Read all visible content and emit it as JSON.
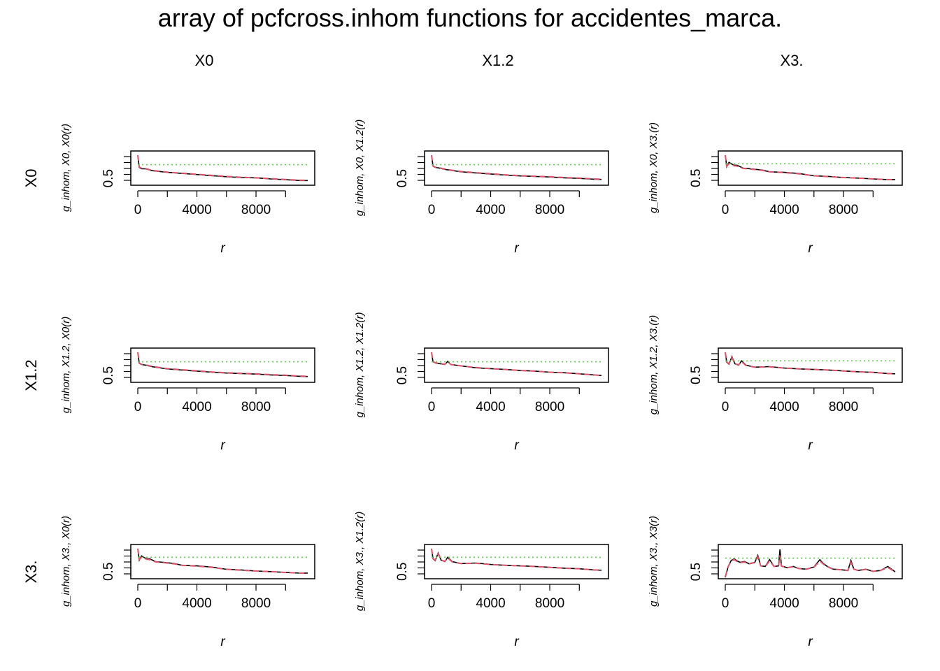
{
  "figure": {
    "title": "array of pcfcross.inhom functions for accidentes_marca.",
    "column_labels": [
      "X0",
      "X1.2",
      "X3."
    ],
    "row_labels": [
      "X0",
      "X1.2",
      "X3."
    ],
    "colors": {
      "observed": "#000000",
      "theoretical": "#61D04F",
      "border_corrected": "#DF536B"
    }
  },
  "chart_data": [
    {
      "type": "line",
      "panel": "X0 x X0",
      "xlabel": "r",
      "ylabel": "g_inhom, X0, X0(r)",
      "x_ticks": [
        0,
        4000,
        8000
      ],
      "y_ticks": [
        0.5
      ],
      "xlim": [
        0,
        11500
      ],
      "ylim": [
        0.3,
        1.4
      ],
      "theo": 1,
      "x": [
        0,
        100,
        250,
        500,
        1000,
        2000,
        3000,
        4000,
        5000,
        6000,
        7000,
        8000,
        9000,
        10000,
        11000,
        11500
      ],
      "series": [
        {
          "name": "obs",
          "values": [
            1.35,
            0.9,
            0.85,
            0.85,
            0.78,
            0.72,
            0.68,
            0.64,
            0.6,
            0.56,
            0.53,
            0.52,
            0.48,
            0.45,
            0.42,
            0.42
          ]
        },
        {
          "name": "border",
          "values": [
            1.35,
            0.92,
            0.87,
            0.86,
            0.79,
            0.73,
            0.69,
            0.65,
            0.61,
            0.57,
            0.54,
            0.52,
            0.49,
            0.46,
            0.43,
            0.43
          ]
        },
        {
          "name": "theo",
          "values": [
            1,
            1,
            1,
            1,
            1,
            1,
            1,
            1,
            1,
            1,
            1,
            1,
            1,
            1,
            1,
            1
          ]
        }
      ]
    },
    {
      "type": "line",
      "panel": "X0 x X1.2",
      "xlabel": "r",
      "ylabel": "g_inhom, X0, X1.2(r)",
      "x_ticks": [
        0,
        4000,
        8000
      ],
      "y_ticks": [
        0.5
      ],
      "xlim": [
        0,
        11500
      ],
      "ylim": [
        0.3,
        1.4
      ],
      "theo": 1,
      "x": [
        0,
        100,
        250,
        500,
        1000,
        2000,
        3000,
        4000,
        5000,
        6000,
        7000,
        8000,
        9000,
        10000,
        11000,
        11500
      ],
      "series": [
        {
          "name": "obs",
          "values": [
            1.35,
            0.95,
            0.9,
            0.88,
            0.82,
            0.74,
            0.7,
            0.66,
            0.62,
            0.59,
            0.57,
            0.55,
            0.52,
            0.5,
            0.47,
            0.46
          ]
        },
        {
          "name": "border",
          "values": [
            1.35,
            0.96,
            0.91,
            0.89,
            0.83,
            0.75,
            0.71,
            0.67,
            0.63,
            0.6,
            0.58,
            0.56,
            0.53,
            0.51,
            0.48,
            0.47
          ]
        },
        {
          "name": "theo",
          "values": [
            1,
            1,
            1,
            1,
            1,
            1,
            1,
            1,
            1,
            1,
            1,
            1,
            1,
            1,
            1,
            1
          ]
        }
      ]
    },
    {
      "type": "line",
      "panel": "X0 x X3.",
      "xlabel": "r",
      "ylabel": "g_inhom, X0, X3.(r)",
      "x_ticks": [
        0,
        4000,
        8000
      ],
      "y_ticks": [
        0.5
      ],
      "xlim": [
        0,
        11500
      ],
      "ylim": [
        0.3,
        1.35
      ],
      "theo": 1,
      "x": [
        0,
        100,
        250,
        400,
        600,
        800,
        1200,
        1800,
        2500,
        3000,
        4000,
        5000,
        6000,
        7000,
        8000,
        9000,
        10000,
        11000,
        11500
      ],
      "series": [
        {
          "name": "obs",
          "values": [
            1.3,
            0.9,
            1.05,
            1.0,
            0.95,
            0.95,
            0.85,
            0.82,
            0.78,
            0.72,
            0.7,
            0.66,
            0.58,
            0.56,
            0.52,
            0.5,
            0.47,
            0.45,
            0.45
          ]
        },
        {
          "name": "border",
          "values": [
            1.3,
            0.92,
            1.0,
            0.98,
            0.93,
            0.92,
            0.84,
            0.81,
            0.77,
            0.72,
            0.69,
            0.65,
            0.58,
            0.55,
            0.52,
            0.5,
            0.47,
            0.45,
            0.45
          ]
        },
        {
          "name": "theo",
          "values": [
            1,
            1,
            1,
            1,
            1,
            1,
            1,
            1,
            1,
            1,
            1,
            1,
            1,
            1,
            1,
            1,
            1,
            1,
            1
          ]
        }
      ]
    },
    {
      "type": "line",
      "panel": "X1.2 x X0",
      "xlabel": "r",
      "ylabel": "g_inhom, X1.2, X0(r)",
      "x_ticks": [
        0,
        4000,
        8000
      ],
      "y_ticks": [
        0.5
      ],
      "xlim": [
        0,
        11500
      ],
      "ylim": [
        0.3,
        1.4
      ],
      "theo": 1,
      "x": [
        0,
        100,
        250,
        500,
        1000,
        2000,
        3000,
        4000,
        5000,
        6000,
        7000,
        8000,
        9000,
        10000,
        11000,
        11500
      ],
      "series": [
        {
          "name": "obs",
          "values": [
            1.35,
            0.95,
            0.9,
            0.88,
            0.82,
            0.74,
            0.7,
            0.66,
            0.62,
            0.59,
            0.57,
            0.55,
            0.52,
            0.5,
            0.47,
            0.46
          ]
        },
        {
          "name": "border",
          "values": [
            1.35,
            0.96,
            0.91,
            0.89,
            0.83,
            0.75,
            0.71,
            0.67,
            0.63,
            0.6,
            0.58,
            0.56,
            0.53,
            0.51,
            0.48,
            0.47
          ]
        },
        {
          "name": "theo",
          "values": [
            1,
            1,
            1,
            1,
            1,
            1,
            1,
            1,
            1,
            1,
            1,
            1,
            1,
            1,
            1,
            1
          ]
        }
      ]
    },
    {
      "type": "line",
      "panel": "X1.2 x X1.2",
      "xlabel": "r",
      "ylabel": "g_inhom, X1.2, X1.2(r)",
      "x_ticks": [
        0,
        4000,
        8000
      ],
      "y_ticks": [
        0.5
      ],
      "xlim": [
        0,
        11500
      ],
      "ylim": [
        0.3,
        1.4
      ],
      "theo": 1,
      "x": [
        0,
        100,
        300,
        600,
        900,
        1100,
        1300,
        1600,
        2000,
        3000,
        4000,
        5000,
        6000,
        7000,
        8000,
        9000,
        10000,
        11000,
        11500
      ],
      "series": [
        {
          "name": "obs",
          "values": [
            1.35,
            1.0,
            0.95,
            0.93,
            0.9,
            1.02,
            0.9,
            0.88,
            0.85,
            0.78,
            0.75,
            0.72,
            0.68,
            0.66,
            0.62,
            0.6,
            0.56,
            0.52,
            0.5
          ]
        },
        {
          "name": "border",
          "values": [
            1.35,
            1.0,
            0.96,
            0.94,
            0.91,
            1.0,
            0.9,
            0.88,
            0.85,
            0.79,
            0.75,
            0.72,
            0.68,
            0.66,
            0.62,
            0.6,
            0.56,
            0.52,
            0.5
          ]
        },
        {
          "name": "theo",
          "values": [
            1,
            1,
            1,
            1,
            1,
            1,
            1,
            1,
            1,
            1,
            1,
            1,
            1,
            1,
            1,
            1,
            1,
            1,
            1
          ]
        }
      ]
    },
    {
      "type": "line",
      "panel": "X1.2 x X3.",
      "xlabel": "r",
      "ylabel": "g_inhom, X1.2, X3.(r)",
      "x_ticks": [
        0,
        4000,
        8000
      ],
      "y_ticks": [
        0.5
      ],
      "xlim": [
        0,
        11500
      ],
      "ylim": [
        0.3,
        1.35
      ],
      "theo": 1,
      "x": [
        0,
        100,
        250,
        450,
        650,
        900,
        1100,
        1400,
        2000,
        3000,
        4000,
        5000,
        6000,
        7000,
        8000,
        9000,
        10000,
        11000,
        11500
      ],
      "series": [
        {
          "name": "obs",
          "values": [
            1.3,
            0.95,
            0.88,
            1.15,
            0.9,
            0.85,
            1.0,
            0.85,
            0.78,
            0.8,
            0.75,
            0.72,
            0.7,
            0.68,
            0.65,
            0.62,
            0.6,
            0.56,
            0.55
          ]
        },
        {
          "name": "border",
          "values": [
            1.3,
            0.96,
            0.9,
            1.12,
            0.9,
            0.86,
            0.98,
            0.84,
            0.78,
            0.79,
            0.75,
            0.72,
            0.7,
            0.68,
            0.65,
            0.62,
            0.6,
            0.56,
            0.55
          ]
        },
        {
          "name": "theo",
          "values": [
            1,
            1,
            1,
            1,
            1,
            1,
            1,
            1,
            1,
            1,
            1,
            1,
            1,
            1,
            1,
            1,
            1,
            1,
            1
          ]
        }
      ]
    },
    {
      "type": "line",
      "panel": "X3. x X0",
      "xlabel": "r",
      "ylabel": "g_inhom, X3., X0(r)",
      "x_ticks": [
        0,
        4000,
        8000
      ],
      "y_ticks": [
        0.5
      ],
      "xlim": [
        0,
        11500
      ],
      "ylim": [
        0.3,
        1.35
      ],
      "theo": 1,
      "x": [
        0,
        100,
        250,
        400,
        600,
        800,
        1200,
        1800,
        2500,
        3000,
        4000,
        5000,
        6000,
        7000,
        8000,
        9000,
        10000,
        11000,
        11500
      ],
      "series": [
        {
          "name": "obs",
          "values": [
            1.3,
            0.9,
            1.05,
            1.0,
            0.95,
            0.95,
            0.85,
            0.82,
            0.78,
            0.72,
            0.7,
            0.66,
            0.58,
            0.56,
            0.52,
            0.5,
            0.47,
            0.45,
            0.45
          ]
        },
        {
          "name": "border",
          "values": [
            1.3,
            0.92,
            1.0,
            0.98,
            0.93,
            0.92,
            0.84,
            0.81,
            0.77,
            0.72,
            0.69,
            0.65,
            0.58,
            0.55,
            0.52,
            0.5,
            0.47,
            0.45,
            0.45
          ]
        },
        {
          "name": "theo",
          "values": [
            1,
            1,
            1,
            1,
            1,
            1,
            1,
            1,
            1,
            1,
            1,
            1,
            1,
            1,
            1,
            1,
            1,
            1,
            1
          ]
        }
      ]
    },
    {
      "type": "line",
      "panel": "X3. x X1.2",
      "xlabel": "r",
      "ylabel": "g_inhom, X3., X1.2(r)",
      "x_ticks": [
        0,
        4000,
        8000
      ],
      "y_ticks": [
        0.5
      ],
      "xlim": [
        0,
        11500
      ],
      "ylim": [
        0.3,
        1.35
      ],
      "theo": 1,
      "x": [
        0,
        100,
        250,
        450,
        650,
        900,
        1100,
        1400,
        2000,
        3000,
        4000,
        5000,
        6000,
        7000,
        8000,
        9000,
        10000,
        11000,
        11500
      ],
      "series": [
        {
          "name": "obs",
          "values": [
            1.3,
            0.95,
            0.88,
            1.15,
            0.9,
            0.85,
            1.0,
            0.85,
            0.78,
            0.8,
            0.75,
            0.72,
            0.7,
            0.68,
            0.65,
            0.62,
            0.6,
            0.56,
            0.55
          ]
        },
        {
          "name": "border",
          "values": [
            1.3,
            0.96,
            0.9,
            1.12,
            0.9,
            0.86,
            0.98,
            0.84,
            0.78,
            0.79,
            0.75,
            0.72,
            0.7,
            0.68,
            0.65,
            0.62,
            0.6,
            0.56,
            0.55
          ]
        },
        {
          "name": "theo",
          "values": [
            1,
            1,
            1,
            1,
            1,
            1,
            1,
            1,
            1,
            1,
            1,
            1,
            1,
            1,
            1,
            1,
            1,
            1,
            1
          ]
        }
      ]
    },
    {
      "type": "line",
      "panel": "X3. x X3.",
      "xlabel": "r",
      "ylabel": "g_inhom, X3., X3(r)",
      "x_ticks": [
        0,
        4000,
        8000
      ],
      "y_ticks": [
        0.5
      ],
      "xlim": [
        0,
        11500
      ],
      "ylim": [
        0.3,
        1.4
      ],
      "theo": 1,
      "x": [
        0,
        200,
        400,
        600,
        800,
        1000,
        1300,
        1600,
        2000,
        2200,
        2400,
        2700,
        3000,
        3300,
        3600,
        3700,
        3800,
        4200,
        4600,
        5000,
        5500,
        6000,
        6400,
        6600,
        6900,
        7300,
        7800,
        8300,
        8500,
        8700,
        9000,
        9500,
        10000,
        10500,
        11000,
        11500
      ],
      "series": [
        {
          "name": "obs",
          "values": [
            0.3,
            0.7,
            0.92,
            0.98,
            0.9,
            0.85,
            0.88,
            0.8,
            0.85,
            1.1,
            0.72,
            0.7,
            0.95,
            0.7,
            0.72,
            1.32,
            0.72,
            0.65,
            0.7,
            0.62,
            0.6,
            0.68,
            0.95,
            0.82,
            0.7,
            0.6,
            0.58,
            0.55,
            0.92,
            0.6,
            0.55,
            0.6,
            0.52,
            0.55,
            0.7,
            0.5
          ]
        },
        {
          "name": "border",
          "values": [
            0.32,
            0.7,
            0.9,
            0.95,
            0.88,
            0.84,
            0.86,
            0.79,
            0.84,
            1.05,
            0.72,
            0.7,
            0.9,
            0.7,
            0.71,
            1.1,
            0.71,
            0.65,
            0.69,
            0.62,
            0.6,
            0.67,
            0.9,
            0.8,
            0.69,
            0.6,
            0.58,
            0.55,
            0.85,
            0.6,
            0.55,
            0.59,
            0.52,
            0.55,
            0.66,
            0.5
          ]
        },
        {
          "name": "theo",
          "values": [
            1,
            1,
            1,
            1,
            1,
            1,
            1,
            1,
            1,
            1,
            1,
            1,
            1,
            1,
            1,
            1,
            1,
            1,
            1,
            1,
            1,
            1,
            1,
            1,
            1,
            1,
            1,
            1,
            1,
            1,
            1,
            1,
            1,
            1,
            1,
            1
          ]
        }
      ]
    }
  ]
}
